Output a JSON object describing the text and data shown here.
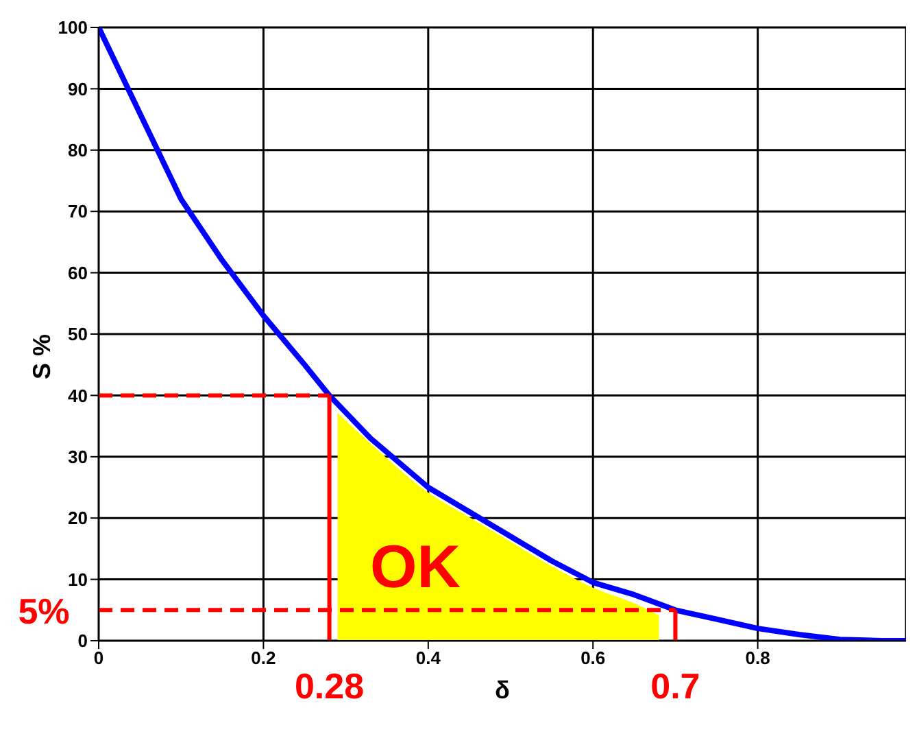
{
  "chart_data": {
    "type": "line",
    "xlabel": "δ",
    "ylabel": "S %",
    "xlim": [
      0,
      0.98
    ],
    "ylim": [
      0,
      100
    ],
    "xticks": [
      0,
      0.2,
      0.4,
      0.6,
      0.8
    ],
    "yticks": [
      0,
      10,
      20,
      30,
      40,
      50,
      60,
      70,
      80,
      90,
      100
    ],
    "grid": true,
    "marker": "none",
    "series": [
      {
        "color": "#0000ff",
        "x": [
          0,
          0.05,
          0.1,
          0.15,
          0.2,
          0.25,
          0.28,
          0.33,
          0.4,
          0.45,
          0.5,
          0.55,
          0.6,
          0.65,
          0.7,
          0.75,
          0.8,
          0.85,
          0.9,
          0.95,
          0.98
        ],
        "values": [
          100,
          86,
          72,
          62,
          53,
          45,
          40,
          33,
          25,
          21,
          17,
          13,
          9.5,
          7.5,
          5,
          3.5,
          2,
          1,
          0.2,
          0,
          0
        ]
      },
      {
        "type": "area",
        "color": "#ffff00",
        "x": [
          0.29,
          0.33,
          0.4,
          0.45,
          0.5,
          0.55,
          0.6,
          0.65,
          0.68
        ],
        "values": [
          37,
          32,
          24,
          20,
          16,
          12,
          8.5,
          6,
          4
        ]
      },
      {
        "color": "#ff0000",
        "line_style": "dashed",
        "x": [
          0,
          0.28
        ],
        "values": [
          40,
          40
        ]
      },
      {
        "color": "#ff0000",
        "line_style": "solid",
        "x": [
          0.28,
          0.28
        ],
        "values": [
          40,
          0
        ]
      },
      {
        "color": "#ff0000",
        "line_style": "dashed",
        "x": [
          0,
          0.7
        ],
        "values": [
          5,
          5
        ]
      },
      {
        "color": "#ff0000",
        "line_style": "solid",
        "x": [
          0.7,
          0.7
        ],
        "values": [
          5,
          0
        ]
      }
    ],
    "annotations": [
      "OK",
      {
        "text": "0.28",
        "x": 0.28,
        "y": 0
      },
      {
        "text": "0.7",
        "x": 0.7,
        "y": 0
      },
      {
        "text": "5%",
        "x": 0,
        "y": 5
      }
    ]
  }
}
